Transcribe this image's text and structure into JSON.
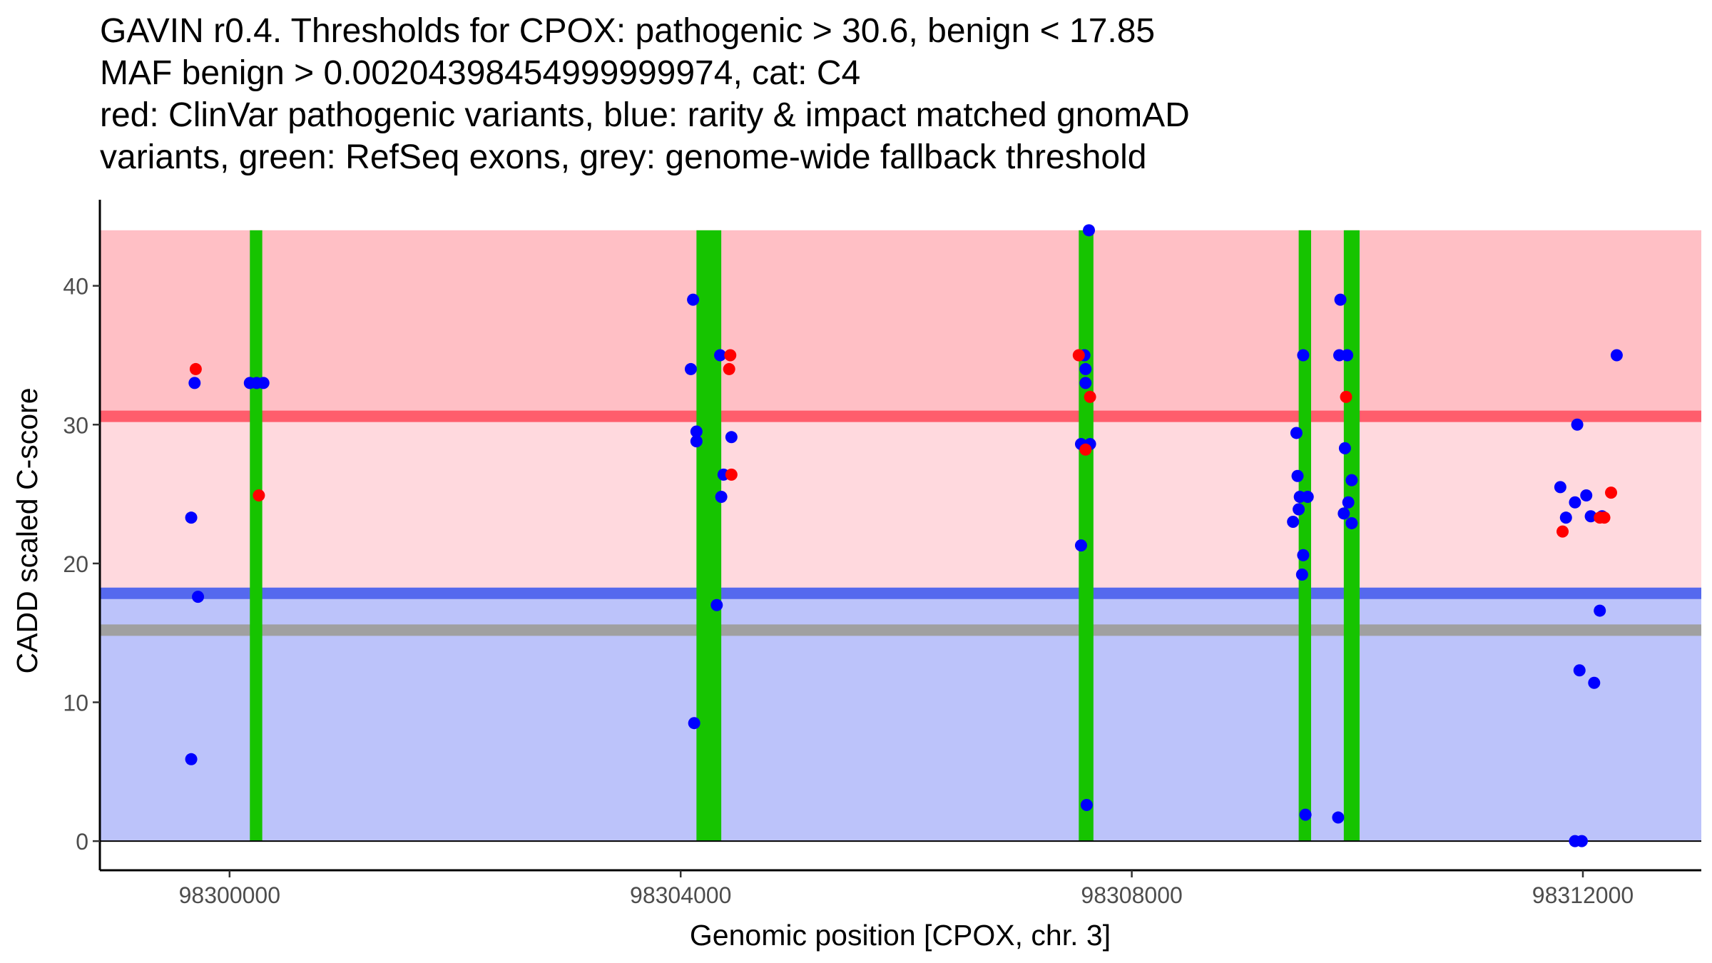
{
  "chart_data": {
    "type": "scatter",
    "title_lines": [
      "GAVIN r0.4. Thresholds for CPOX: pathogenic > 30.6, benign < 17.85",
      "MAF benign > 0.00204398454999999974, cat: C4",
      "red: ClinVar pathogenic variants, blue: rarity & impact matched gnomAD",
      "variants, green: RefSeq exons, grey: genome-wide fallback threshold"
    ],
    "xlabel": "Genomic position [CPOX, chr. 3]",
    "ylabel": "CADD scaled C-score",
    "xlim": [
      98298850,
      98313050
    ],
    "ylim": [
      -2.1,
      46.2
    ],
    "x_ticks": [
      98300000,
      98304000,
      98308000,
      98312000
    ],
    "x_tick_labels": [
      "98300000",
      "98304000",
      "98308000",
      "98312000"
    ],
    "y_ticks": [
      0,
      10,
      20,
      30,
      40
    ],
    "y_tick_labels": [
      "0",
      "10",
      "20",
      "30",
      "40"
    ],
    "colors": {
      "pathogenic_zone": "#ffbfc5",
      "vous_zone": "#ffd9de",
      "benign_zone": "#bcc3fa",
      "pathogenic_line": "#ff5d6c",
      "benign_line": "#5569ee",
      "fallback_line": "#a0a0a0",
      "exon": "#16c400",
      "clinvar": "#ff0000",
      "gnomad": "#0000ff"
    },
    "zones": {
      "x_range": [
        98298850,
        98313050
      ],
      "pathogenic": [
        30.6,
        44
      ],
      "vous": [
        17.85,
        30.6
      ],
      "benign": [
        0,
        17.85
      ]
    },
    "thresholds": {
      "pathogenic": 30.6,
      "benign": 17.85,
      "fallback": 15.2
    },
    "exons": [
      [
        98300180,
        98300290
      ],
      [
        98304140,
        98304360
      ],
      [
        98307530,
        98307660
      ],
      [
        98309480,
        98309590
      ],
      [
        98309880,
        98310020
      ]
    ],
    "series": [
      {
        "name": "ClinVar pathogenic variants",
        "color_key": "clinvar",
        "points": [
          [
            98299700,
            34
          ],
          [
            98300260,
            24.9
          ],
          [
            98304440,
            35
          ],
          [
            98304430,
            34
          ],
          [
            98304450,
            26.4
          ],
          [
            98307530,
            35
          ],
          [
            98307590,
            28.2
          ],
          [
            98307630,
            32
          ],
          [
            98309900,
            32
          ],
          [
            98311820,
            22.3
          ],
          [
            98312150,
            23.3
          ],
          [
            98312190,
            23.3
          ],
          [
            98312250,
            25.1
          ]
        ]
      },
      {
        "name": "gnomAD variants",
        "color_key": "gnomad",
        "points": [
          [
            98299690,
            33
          ],
          [
            98299660,
            23.3
          ],
          [
            98299720,
            17.6
          ],
          [
            98299660,
            5.9
          ],
          [
            98300180,
            33
          ],
          [
            98300240,
            33
          ],
          [
            98300300,
            33
          ],
          [
            98304110,
            39
          ],
          [
            98304090,
            34
          ],
          [
            98304140,
            29.5
          ],
          [
            98304140,
            28.8
          ],
          [
            98304450,
            29.1
          ],
          [
            98304350,
            35
          ],
          [
            98304380,
            26.4
          ],
          [
            98304360,
            24.8
          ],
          [
            98304320,
            17
          ],
          [
            98304120,
            8.5
          ],
          [
            98307620,
            44
          ],
          [
            98307550,
            28.6
          ],
          [
            98307630,
            28.6
          ],
          [
            98307580,
            35
          ],
          [
            98307590,
            34
          ],
          [
            98307590,
            33
          ],
          [
            98307550,
            21.3
          ],
          [
            98307600,
            2.6
          ],
          [
            98309520,
            35
          ],
          [
            98309460,
            29.4
          ],
          [
            98309470,
            26.3
          ],
          [
            98309490,
            24.8
          ],
          [
            98309560,
            24.8
          ],
          [
            98309480,
            23.9
          ],
          [
            98309430,
            23
          ],
          [
            98309520,
            20.6
          ],
          [
            98309510,
            19.2
          ],
          [
            98309540,
            1.9
          ],
          [
            98309850,
            39
          ],
          [
            98309840,
            35
          ],
          [
            98309910,
            35
          ],
          [
            98309890,
            28.3
          ],
          [
            98309950,
            26
          ],
          [
            98309920,
            24.4
          ],
          [
            98309880,
            23.6
          ],
          [
            98309950,
            22.9
          ],
          [
            98309830,
            1.7
          ],
          [
            98311800,
            25.5
          ],
          [
            98311950,
            30
          ],
          [
            98311930,
            24.4
          ],
          [
            98311850,
            23.3
          ],
          [
            98312030,
            24.9
          ],
          [
            98312070,
            23.4
          ],
          [
            98312170,
            23.4
          ],
          [
            98312150,
            16.6
          ],
          [
            98311970,
            12.3
          ],
          [
            98312100,
            11.4
          ],
          [
            98311930,
            0
          ],
          [
            98311990,
            0
          ],
          [
            98312300,
            35
          ]
        ]
      }
    ]
  }
}
